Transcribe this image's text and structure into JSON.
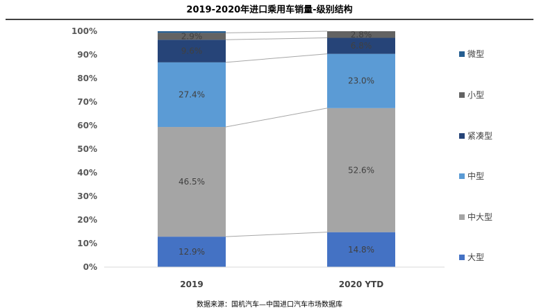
{
  "chart_data": {
    "type": "bar",
    "stacked": true,
    "normalized": true,
    "title": "2019-2020年进口乘用车销量-级别结构",
    "categories": [
      "2019",
      "2020 YTD"
    ],
    "ylim": [
      0,
      100
    ],
    "yticks": [
      "0%",
      "10%",
      "20%",
      "30%",
      "40%",
      "50%",
      "60%",
      "70%",
      "80%",
      "90%",
      "100%"
    ],
    "series": [
      {
        "name": "大型",
        "color": "#4472c4",
        "values": [
          12.9,
          14.8
        ],
        "labels": [
          "12.9%",
          "14.8%"
        ]
      },
      {
        "name": "中大型",
        "color": "#a5a5a5",
        "values": [
          46.5,
          52.6
        ],
        "labels": [
          "46.5%",
          "52.6%"
        ]
      },
      {
        "name": "中型",
        "color": "#5b9bd5",
        "values": [
          27.4,
          23.0
        ],
        "labels": [
          "27.4%",
          "23.0%"
        ]
      },
      {
        "name": "紧凑型",
        "color": "#264478",
        "values": [
          9.6,
          6.8
        ],
        "labels": [
          "9.6%",
          "6.8%"
        ]
      },
      {
        "name": "小型",
        "color": "#636363",
        "values": [
          2.9,
          2.8
        ],
        "labels": [
          "2.9%",
          "2.8%"
        ]
      },
      {
        "name": "微型",
        "color": "#255e91",
        "values": [
          0.7,
          0.0
        ],
        "labels": [
          "",
          ""
        ]
      }
    ],
    "legend_order": [
      "微型",
      "小型",
      "紧凑型",
      "中型",
      "中大型",
      "大型"
    ],
    "legend_position": "right",
    "series_lines": true,
    "grid": false
  },
  "source_note": "数据来源：国机汽车—中国进口汽车市场数据库"
}
